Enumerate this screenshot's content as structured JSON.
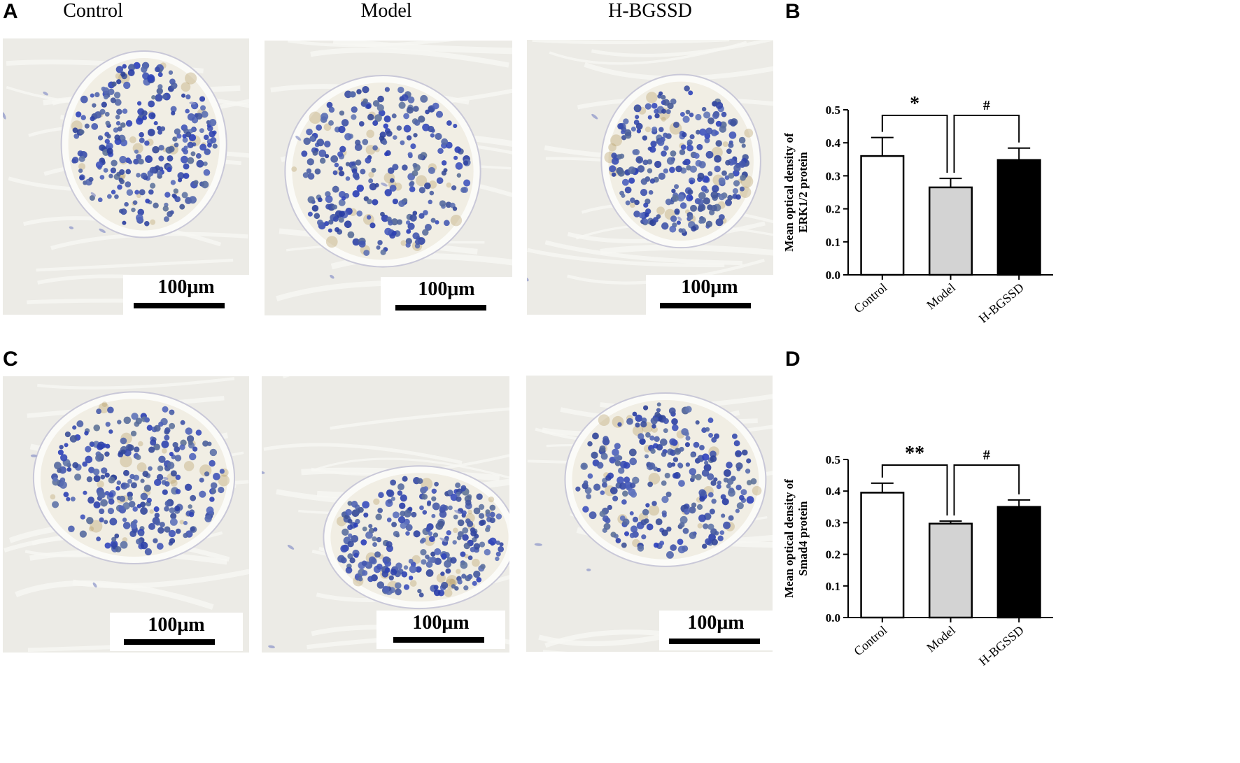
{
  "panel_a": {
    "letter": "A",
    "columns": [
      "Control",
      "Model",
      "H-BGSSD"
    ],
    "scale_labels": [
      "100μm",
      "100μm",
      "100μm"
    ]
  },
  "panel_c": {
    "letter": "C",
    "scale_labels": [
      "100μm",
      "100μm",
      "100μm"
    ]
  },
  "colors": {
    "background_tissue": "#ecebe6",
    "nuclei": "#3b4aa3",
    "brown_stain": "#b59a62",
    "bar_control": "#ffffff",
    "bar_model": "#d3d3d3",
    "bar_hbgssd": "#000000"
  },
  "chart_data": [
    {
      "panel": "B",
      "type": "bar",
      "ylabel": "Mean optical density of ERK1/2 protein",
      "ylabel_lines": [
        "Mean optical density of",
        "ERK1/2 protein"
      ],
      "categories": [
        "Control",
        "Model",
        "H-BGSSD"
      ],
      "values": [
        0.36,
        0.265,
        0.348
      ],
      "errors": [
        0.056,
        0.027,
        0.036
      ],
      "ylim": [
        0,
        0.5
      ],
      "yticks": [
        "0.0",
        "0.1",
        "0.2",
        "0.3",
        "0.4",
        "0.5"
      ],
      "annotations": [
        {
          "label": "*",
          "from": "Control",
          "to": "Model"
        },
        {
          "label": "#",
          "from": "Model",
          "to": "H-BGSSD"
        }
      ]
    },
    {
      "panel": "D",
      "type": "bar",
      "ylabel": "Mean optical density of Smad4 protein",
      "ylabel_lines": [
        "Mean optical density of",
        "Smad4 protein"
      ],
      "categories": [
        "Control",
        "Model",
        "H-BGSSD"
      ],
      "values": [
        0.395,
        0.297,
        0.35
      ],
      "errors": [
        0.03,
        0.008,
        0.022
      ],
      "ylim": [
        0,
        0.5
      ],
      "yticks": [
        "0.0",
        "0.1",
        "0.2",
        "0.3",
        "0.4",
        "0.5"
      ],
      "annotations": [
        {
          "label": "**",
          "from": "Control",
          "to": "Model"
        },
        {
          "label": "#",
          "from": "Model",
          "to": "H-BGSSD"
        }
      ]
    }
  ]
}
